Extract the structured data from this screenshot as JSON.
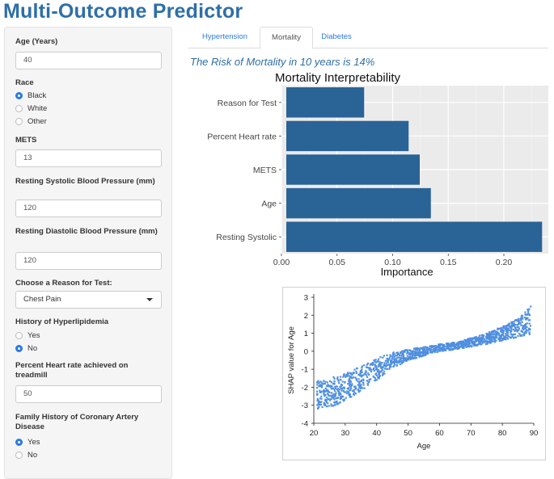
{
  "app": {
    "title": "Multi-Outcome Predictor"
  },
  "sidebar": {
    "age": {
      "label": "Age (Years)",
      "value": "40"
    },
    "race": {
      "label": "Race",
      "options": [
        "Black",
        "White",
        "Other"
      ],
      "selected": "Black"
    },
    "mets": {
      "label": "METS",
      "value": "13"
    },
    "systolic": {
      "label": "Resting Systolic Blood Pressure (mm)",
      "value": "120"
    },
    "diastolic": {
      "label": "Resting Diastolic Blood Pressure (mm)",
      "value": "120"
    },
    "reason": {
      "label": "Choose a Reason for Test:",
      "value": "Chest Pain"
    },
    "hyperlipidemia": {
      "label": "History of Hyperlipidemia",
      "options": [
        "Yes",
        "No"
      ],
      "selected": "No"
    },
    "heart_rate": {
      "label": "Percent Heart rate achieved on treadmill",
      "value": "50"
    },
    "family_history": {
      "label": "Family History of Coronary Artery Disease",
      "options": [
        "Yes",
        "No"
      ],
      "selected": "Yes"
    }
  },
  "tabs": [
    {
      "label": "Hypertension",
      "active": false
    },
    {
      "label": "Mortality",
      "active": true
    },
    {
      "label": "Diabetes",
      "active": false
    }
  ],
  "main": {
    "risk_text": "The Risk of Mortality in 10 years is 14%"
  },
  "colors": {
    "bar": "#2a6396",
    "accent": "#2a7ae2",
    "title": "#2e6fa7",
    "scatter": "#4f8fe0"
  },
  "chart_data": [
    {
      "type": "bar",
      "orientation": "horizontal",
      "title": "Mortality Interpretability",
      "xlabel": "Importance",
      "ylabel": "",
      "categories": [
        "Reason for Test",
        "Percent Heart rate",
        "METS",
        "Age",
        "Resting Systolic"
      ],
      "values": [
        0.07,
        0.11,
        0.12,
        0.13,
        0.23
      ],
      "xlim": [
        0,
        0.24
      ],
      "xticks": [
        "0.00",
        "0.05",
        "0.10",
        "0.15",
        "0.20"
      ],
      "grid": true
    },
    {
      "type": "scatter",
      "title": "",
      "xlabel": "Age",
      "ylabel": "SHAP value for Age",
      "xlim": [
        20,
        90
      ],
      "ylim": [
        -4,
        3
      ],
      "xticks": [
        "20",
        "30",
        "40",
        "50",
        "60",
        "70",
        "80",
        "90"
      ],
      "yticks": [
        "-4",
        "-3",
        "-2",
        "-1",
        "0",
        "1",
        "2",
        "3"
      ],
      "trend": {
        "x": [
          21,
          25,
          30,
          35,
          40,
          45,
          50,
          55,
          60,
          65,
          70,
          75,
          80,
          85,
          89
        ],
        "y": [
          -2.4,
          -2.3,
          -2.0,
          -1.5,
          -1.0,
          -0.5,
          -0.2,
          0.0,
          0.2,
          0.3,
          0.5,
          0.7,
          1.0,
          1.3,
          1.7
        ],
        "spread": [
          0.8,
          0.8,
          0.8,
          0.7,
          0.6,
          0.45,
          0.3,
          0.25,
          0.2,
          0.2,
          0.25,
          0.3,
          0.4,
          0.5,
          0.8
        ]
      }
    }
  ]
}
